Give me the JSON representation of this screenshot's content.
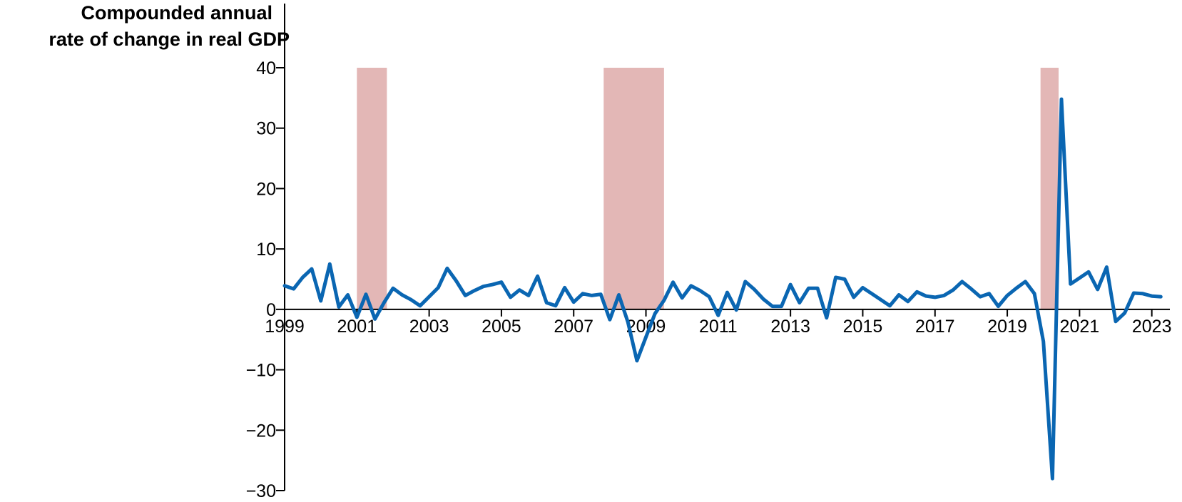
{
  "chart_data": {
    "type": "line",
    "title": "",
    "xlabel": "",
    "ylabel_lines": [
      "Compounded annual",
      "rate of change in real GDP"
    ],
    "ylim": [
      -30,
      40
    ],
    "yticks": [
      {
        "value": 40,
        "label": "40"
      },
      {
        "value": 30,
        "label": "30"
      },
      {
        "value": 20,
        "label": "20"
      },
      {
        "value": 10,
        "label": "10"
      },
      {
        "value": 0,
        "label": "0"
      },
      {
        "value": -10,
        "label": "−10"
      },
      {
        "value": -20,
        "label": "−20"
      },
      {
        "value": -30,
        "label": "−30"
      }
    ],
    "xlim": [
      1999.0,
      2023.5
    ],
    "xticks": [
      "1999",
      "2001",
      "2003",
      "2005",
      "2007",
      "2009",
      "2011",
      "2013",
      "2015",
      "2017",
      "2019",
      "2021",
      "2023"
    ],
    "grid": false,
    "legend": "none",
    "colors": {
      "line": "#0a66b2",
      "recession": "#e3b7b6",
      "axis": "#000000"
    },
    "recessions": [
      {
        "start": 2001.0,
        "end": 2001.83
      },
      {
        "start": 2007.83,
        "end": 2009.5
      },
      {
        "start": 2019.92,
        "end": 2020.42
      }
    ],
    "series": [
      {
        "quarter_start": "1999Q1",
        "values": [
          3.9,
          3.4,
          5.3,
          6.7,
          1.4,
          7.5,
          0.4,
          2.4,
          -1.3,
          2.5,
          -1.6,
          1.1,
          3.5,
          2.4,
          1.6,
          0.6,
          2.1,
          3.6,
          6.8,
          4.7,
          2.3,
          3.1,
          3.8,
          4.1,
          4.5,
          2.0,
          3.2,
          2.3,
          5.5,
          1.1,
          0.6,
          3.6,
          1.2,
          2.6,
          2.3,
          2.5,
          -1.7,
          2.4,
          -2.1,
          -8.5,
          -4.6,
          -0.7,
          1.5,
          4.5,
          1.9,
          3.9,
          3.1,
          2.1,
          -1.0,
          2.8,
          -0.1,
          4.6,
          3.3,
          1.7,
          0.5,
          0.5,
          4.1,
          1.1,
          3.5,
          3.5,
          -1.4,
          5.3,
          5.0,
          2.0,
          3.6,
          2.6,
          1.6,
          0.6,
          2.4,
          1.3,
          2.9,
          2.2,
          2.0,
          2.3,
          3.2,
          4.6,
          3.4,
          2.1,
          2.6,
          0.5,
          2.3,
          3.5,
          4.6,
          2.6,
          -5.3,
          -28.0,
          34.8,
          4.2,
          5.2,
          6.2,
          3.3,
          7.0,
          -2.0,
          -0.6,
          2.7,
          2.6,
          2.2,
          2.1
        ]
      }
    ]
  }
}
